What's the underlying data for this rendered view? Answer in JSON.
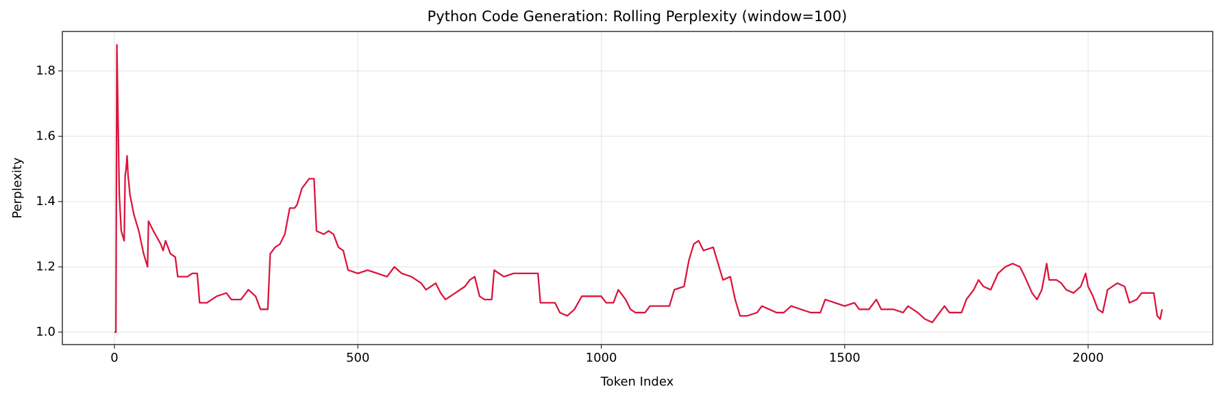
{
  "chart_data": {
    "type": "line",
    "title": "Python Code Generation: Rolling Perplexity (window=100)",
    "x_label": "Token Index",
    "y_label": "Perplexity",
    "color": "#dc143c",
    "grid": true,
    "xlim": [
      -107,
      2256
    ],
    "ylim": [
      0.962,
      1.921
    ],
    "xticks": [
      0,
      500,
      1000,
      1500,
      2000
    ],
    "yticks": [
      {
        "value": 1.0,
        "label": "1.0"
      },
      1.2,
      1.4,
      1.6,
      1.8
    ],
    "x": [
      0,
      3,
      5,
      8,
      10,
      14,
      18,
      20,
      22,
      24,
      26,
      28,
      32,
      40,
      50,
      60,
      68,
      70,
      80,
      95,
      100,
      105,
      110,
      115,
      125,
      130,
      140,
      150,
      160,
      170,
      175,
      190,
      200,
      210,
      230,
      240,
      260,
      275,
      290,
      300,
      315,
      320,
      330,
      340,
      350,
      360,
      370,
      375,
      385,
      400,
      410,
      415,
      430,
      440,
      450,
      460,
      470,
      480,
      500,
      520,
      540,
      560,
      575,
      590,
      610,
      630,
      640,
      660,
      670,
      680,
      700,
      720,
      730,
      740,
      750,
      760,
      775,
      780,
      790,
      800,
      820,
      840,
      870,
      875,
      890,
      905,
      915,
      930,
      945,
      960,
      980,
      1000,
      1010,
      1025,
      1035,
      1050,
      1060,
      1070,
      1090,
      1100,
      1125,
      1140,
      1150,
      1170,
      1180,
      1190,
      1200,
      1210,
      1230,
      1240,
      1250,
      1265,
      1275,
      1285,
      1300,
      1320,
      1330,
      1345,
      1360,
      1375,
      1390,
      1410,
      1430,
      1450,
      1460,
      1480,
      1500,
      1520,
      1530,
      1550,
      1565,
      1575,
      1600,
      1620,
      1630,
      1650,
      1665,
      1680,
      1695,
      1705,
      1715,
      1740,
      1750,
      1765,
      1775,
      1785,
      1800,
      1815,
      1830,
      1845,
      1860,
      1870,
      1885,
      1895,
      1905,
      1915,
      1920,
      1935,
      1945,
      1955,
      1970,
      1985,
      1995,
      2000,
      2010,
      2020,
      2030,
      2040,
      2060,
      2075,
      2085,
      2100,
      2110,
      2135,
      2142,
      2148,
      2152
    ],
    "values": [
      1.0,
      1.0,
      1.88,
      1.6,
      1.42,
      1.31,
      1.29,
      1.28,
      1.48,
      1.5,
      1.54,
      1.48,
      1.42,
      1.36,
      1.31,
      1.24,
      1.2,
      1.34,
      1.31,
      1.27,
      1.25,
      1.28,
      1.26,
      1.24,
      1.23,
      1.17,
      1.17,
      1.17,
      1.18,
      1.18,
      1.09,
      1.09,
      1.1,
      1.11,
      1.12,
      1.1,
      1.1,
      1.13,
      1.11,
      1.07,
      1.07,
      1.24,
      1.26,
      1.27,
      1.3,
      1.38,
      1.38,
      1.39,
      1.44,
      1.47,
      1.47,
      1.31,
      1.3,
      1.31,
      1.3,
      1.26,
      1.25,
      1.19,
      1.18,
      1.19,
      1.18,
      1.17,
      1.2,
      1.18,
      1.17,
      1.15,
      1.13,
      1.15,
      1.12,
      1.1,
      1.12,
      1.14,
      1.16,
      1.17,
      1.11,
      1.1,
      1.1,
      1.19,
      1.18,
      1.17,
      1.18,
      1.18,
      1.18,
      1.09,
      1.09,
      1.09,
      1.06,
      1.05,
      1.07,
      1.11,
      1.11,
      1.11,
      1.09,
      1.09,
      1.13,
      1.1,
      1.07,
      1.06,
      1.06,
      1.08,
      1.08,
      1.08,
      1.13,
      1.14,
      1.22,
      1.27,
      1.28,
      1.25,
      1.26,
      1.21,
      1.16,
      1.17,
      1.1,
      1.05,
      1.05,
      1.06,
      1.08,
      1.07,
      1.06,
      1.06,
      1.08,
      1.07,
      1.06,
      1.06,
      1.1,
      1.09,
      1.08,
      1.09,
      1.07,
      1.07,
      1.1,
      1.07,
      1.07,
      1.06,
      1.08,
      1.06,
      1.04,
      1.03,
      1.06,
      1.08,
      1.06,
      1.06,
      1.1,
      1.13,
      1.16,
      1.14,
      1.13,
      1.18,
      1.2,
      1.21,
      1.2,
      1.17,
      1.12,
      1.1,
      1.13,
      1.21,
      1.16,
      1.16,
      1.15,
      1.13,
      1.12,
      1.14,
      1.18,
      1.14,
      1.11,
      1.07,
      1.06,
      1.13,
      1.15,
      1.14,
      1.09,
      1.1,
      1.12,
      1.12,
      1.05,
      1.04,
      1.07
    ]
  }
}
